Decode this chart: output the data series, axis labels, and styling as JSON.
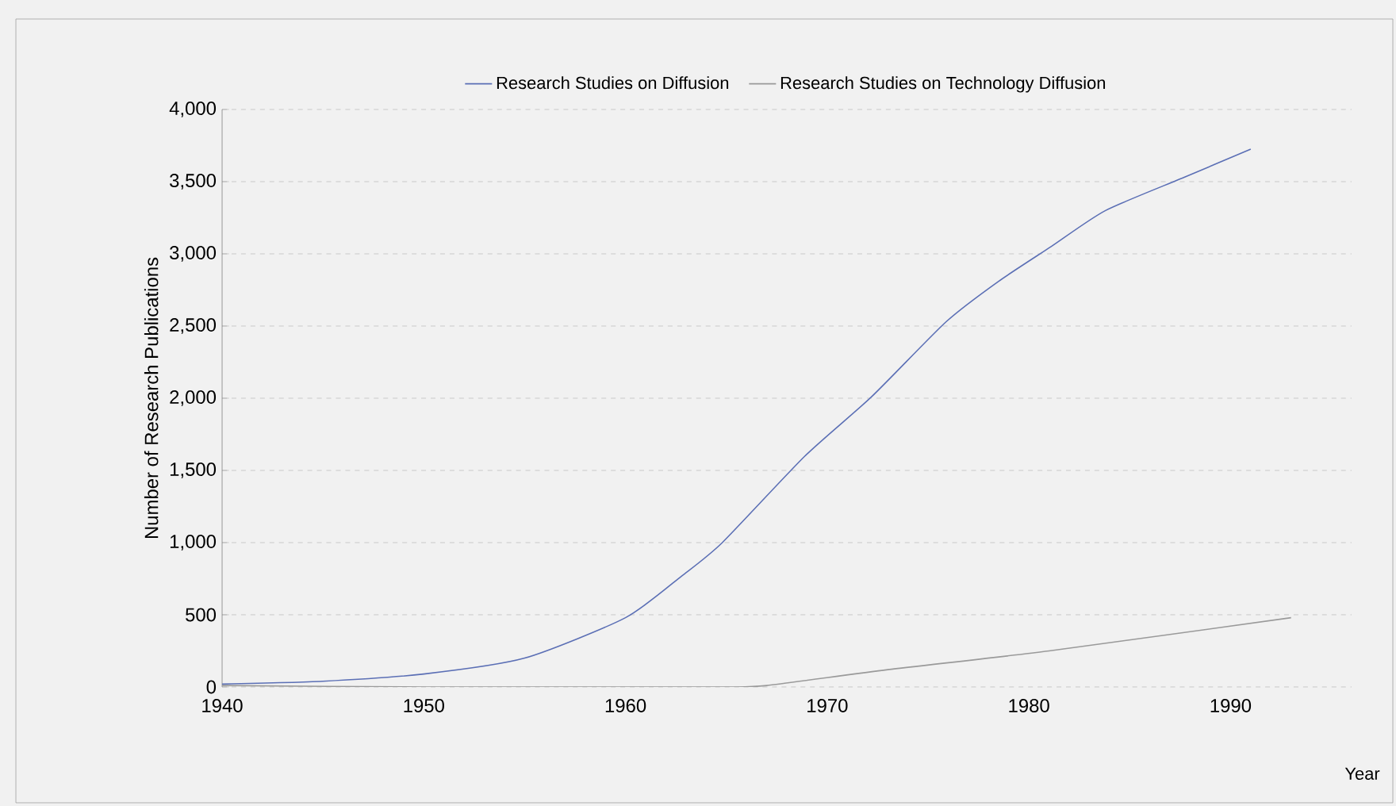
{
  "chart_data": {
    "type": "line",
    "xlabel": "Year",
    "ylabel": "Number of Research Publications",
    "xlim": [
      1940,
      1996
    ],
    "xticks": [
      1940,
      1950,
      1960,
      1970,
      1980,
      1990
    ],
    "ylim": [
      0,
      4000
    ],
    "yticks": [
      {
        "value": 0,
        "label": "0"
      },
      {
        "value": 500,
        "label": "500"
      },
      {
        "value": 1000,
        "label": "1,000"
      },
      {
        "value": 1500,
        "label": "1,500"
      },
      {
        "value": 2000,
        "label": "2,000"
      },
      {
        "value": 2500,
        "label": "2,500"
      },
      {
        "value": 3000,
        "label": "3,000"
      },
      {
        "value": 3500,
        "label": "3,500"
      },
      {
        "value": 4000,
        "label": "4,000"
      }
    ],
    "grid": "y",
    "legend": "top",
    "line_style": "solid",
    "marker": "none",
    "series": [
      {
        "name": "Research Studies on  Diffusion",
        "color": "#5b6fb5",
        "x": [
          1940,
          1945,
          1950,
          1955,
          1960,
          1962.8,
          1964.8,
          1968.9,
          1972.2,
          1975.9,
          1978.5,
          1981.1,
          1983.8,
          1987.7,
          1991
        ],
        "values": [
          20,
          40,
          90,
          200,
          480,
          770,
          1000,
          1600,
          2010,
          2530,
          2810,
          3050,
          3300,
          3530,
          3725
        ]
      },
      {
        "name": "Research Studies on Technology Diffusion",
        "color": "#9a9a9a",
        "x": [
          1940,
          1950,
          1960,
          1965,
          1967,
          1973,
          1981,
          1993
        ],
        "values": [
          10,
          0,
          0,
          0,
          10,
          120,
          250,
          480
        ]
      }
    ]
  }
}
